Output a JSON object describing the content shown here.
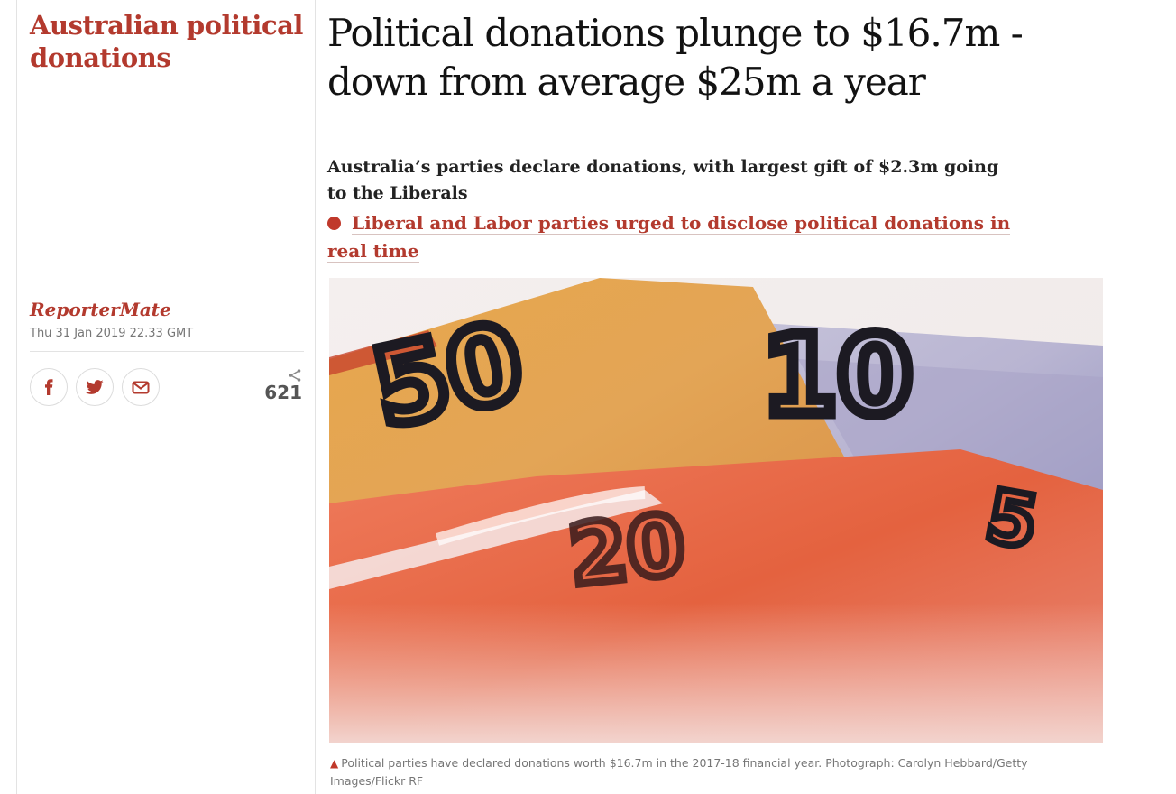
{
  "section": {
    "title": "Australian political donations"
  },
  "article": {
    "headline": "Political donations plunge to $16.7m - down from average $25m a year",
    "standfirst": "Australia’s parties declare donations, with largest gift of $2.3m going to the Liberals",
    "related_link": "Liberal and Labor parties urged to disclose political donations in real time"
  },
  "byline": {
    "author": "ReporterMate",
    "date": "Thu 31 Jan 2019 22.33 GMT"
  },
  "share": {
    "buttons": [
      "facebook-icon",
      "twitter-icon",
      "email-icon"
    ],
    "count": "621"
  },
  "image": {
    "caption": "Political parties have declared donations worth $16.7m in the 2017-18 financial year. Photograph: Carolyn Hebbard/Getty Images/Flickr RF",
    "note_50": "50",
    "note_10": "10",
    "note_20": "20",
    "note_5": "5"
  },
  "colors": {
    "accent": "#b33a2e",
    "text": "#121212",
    "muted": "#767676"
  }
}
